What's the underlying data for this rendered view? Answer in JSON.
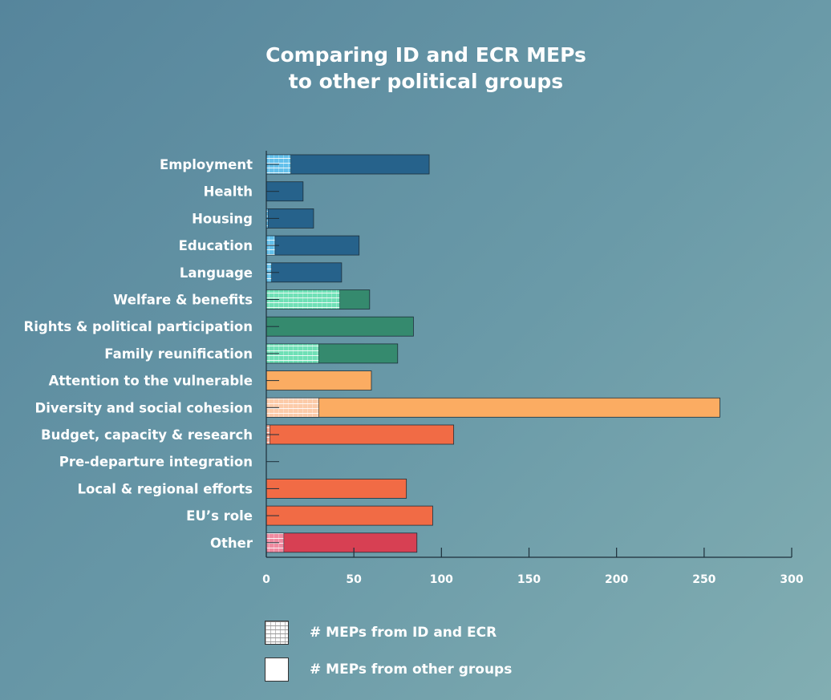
{
  "chart_data": {
    "type": "bar",
    "orientation": "horizontal",
    "stacked": true,
    "title_lines": [
      "Comparing ID and ECR MEPs",
      "to other political groups"
    ],
    "categories": [
      "Employment",
      "Health",
      "Housing",
      "Education",
      "Language",
      "Welfare & benefits",
      "Rights & political participation",
      "Family reunification",
      "Attention to the vulnerable",
      "Diversity and social cohesion",
      "Budget, capacity & research",
      "Pre-departure integration",
      "Local & regional efforts",
      "EU’s role",
      "Other"
    ],
    "series": [
      {
        "name": "# MEPs from ID and ECR",
        "values": [
          14,
          0,
          1,
          5,
          3,
          42,
          0,
          30,
          0,
          30,
          2,
          0,
          0,
          0,
          10
        ]
      },
      {
        "name": "# MEPs from other groups",
        "values": [
          79,
          21,
          26,
          48,
          40,
          17,
          84,
          45,
          60,
          229,
          105,
          0,
          80,
          95,
          76
        ]
      }
    ],
    "category_colors": [
      "#26628b",
      "#26628b",
      "#26628b",
      "#26628b",
      "#26628b",
      "#358a6e",
      "#358a6e",
      "#358a6e",
      "#fbac62",
      "#fbac62",
      "#f16b45",
      "#f16b45",
      "#f16b45",
      "#f16b45",
      "#d74053"
    ],
    "hatch_colors": [
      "#63c0eb",
      "#63c0eb",
      "#63c0eb",
      "#63c0eb",
      "#63c0eb",
      "#6fe0b6",
      "#6fe0b6",
      "#6fe0b6",
      "#fccba9",
      "#fccba9",
      "#f7a38c",
      "#f7a38c",
      "#f7a38c",
      "#f7a38c",
      "#f08aa0"
    ],
    "xlim": [
      0,
      300
    ],
    "xticks": [
      0,
      50,
      100,
      150,
      200,
      250,
      300
    ],
    "grid": false,
    "legend_position": "bottom"
  }
}
